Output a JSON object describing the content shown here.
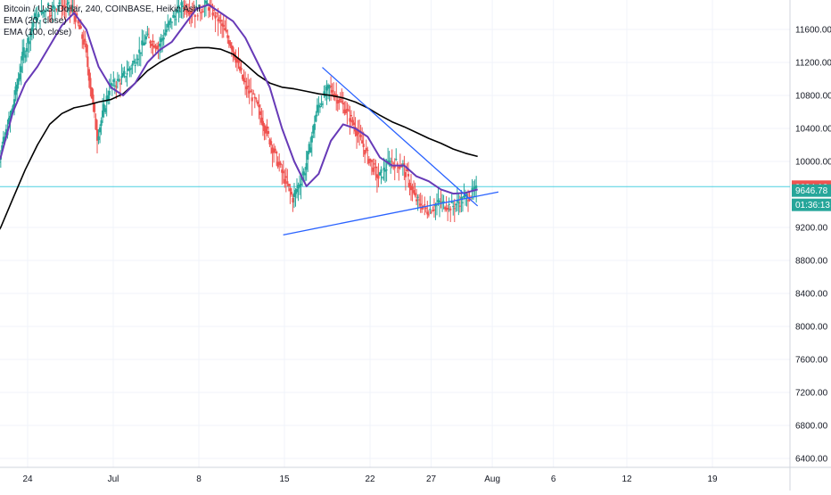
{
  "legend": {
    "symbol_line": "Bitcoin / U.S. Dollar, 240, COINBASE, Heikin Ashi",
    "ema20": "EMA (20, close)",
    "ema100": "EMA (100, close)"
  },
  "colors": {
    "up": "#26a69a",
    "down": "#ef5350",
    "ema20": "#673ab7",
    "ema100": "#000000",
    "trendline": "#2962ff",
    "hline": "#4dd0e1",
    "last_price_bg": "#ef5350",
    "current_bg": "#26a69a",
    "countdown_bg": "#26a69a"
  },
  "chart_data": {
    "type": "candlestick",
    "x_ticks": [
      "24",
      "Jul",
      "8",
      "15",
      "22",
      "27",
      "Aug",
      "6",
      "12",
      "19"
    ],
    "y_ticks": [
      "11600.00",
      "11200.00",
      "10800.00",
      "10400.00",
      "10000.00",
      "9200.00",
      "8800.00",
      "8400.00",
      "8000.00",
      "7600.00",
      "7200.00",
      "6800.00",
      "6400.00"
    ],
    "y_range": [
      6300,
      12000
    ],
    "x_range_days": [
      "Jun 21",
      "Aug 22"
    ],
    "price_labels": {
      "last": "9694.16",
      "current": "9646.78",
      "countdown": "01:36:13"
    },
    "horizontal_level": 9694.16,
    "ema20_path": [
      [
        -1,
        9700
      ],
      [
        0,
        9760
      ],
      [
        1,
        10050
      ],
      [
        2,
        10600
      ],
      [
        3,
        10950
      ],
      [
        4,
        11150
      ],
      [
        5,
        11400
      ],
      [
        6,
        11650
      ],
      [
        7,
        11800
      ],
      [
        8,
        11600
      ],
      [
        9,
        11150
      ],
      [
        10,
        10900
      ],
      [
        11,
        10800
      ],
      [
        12,
        10950
      ],
      [
        13,
        11200
      ],
      [
        14,
        11350
      ],
      [
        15,
        11450
      ],
      [
        16,
        11650
      ],
      [
        17,
        11850
      ],
      [
        18,
        11900
      ],
      [
        19,
        11800
      ],
      [
        20,
        11700
      ],
      [
        21,
        11500
      ],
      [
        22,
        11200
      ],
      [
        23,
        10900
      ],
      [
        24,
        10400
      ],
      [
        25,
        10000
      ],
      [
        26,
        9700
      ],
      [
        27,
        9850
      ],
      [
        28,
        10250
      ],
      [
        29,
        10450
      ],
      [
        30,
        10400
      ],
      [
        31,
        10300
      ],
      [
        32,
        10050
      ],
      [
        33,
        9950
      ],
      [
        34,
        9950
      ],
      [
        35,
        9820
      ],
      [
        36,
        9760
      ],
      [
        37,
        9660
      ],
      [
        38,
        9610
      ],
      [
        39,
        9620
      ],
      [
        40,
        9660
      ]
    ],
    "ema100_path": [
      [
        -1,
        8800
      ],
      [
        0,
        8950
      ],
      [
        1,
        9200
      ],
      [
        2,
        9550
      ],
      [
        3,
        9900
      ],
      [
        4,
        10200
      ],
      [
        5,
        10450
      ],
      [
        6,
        10580
      ],
      [
        7,
        10650
      ],
      [
        8,
        10680
      ],
      [
        9,
        10720
      ],
      [
        10,
        10750
      ],
      [
        11,
        10820
      ],
      [
        12,
        10950
      ],
      [
        13,
        11100
      ],
      [
        14,
        11200
      ],
      [
        15,
        11280
      ],
      [
        16,
        11350
      ],
      [
        17,
        11380
      ],
      [
        18,
        11380
      ],
      [
        19,
        11360
      ],
      [
        20,
        11300
      ],
      [
        21,
        11180
      ],
      [
        22,
        11050
      ],
      [
        23,
        10950
      ],
      [
        24,
        10900
      ],
      [
        25,
        10880
      ],
      [
        26,
        10850
      ],
      [
        27,
        10820
      ],
      [
        28,
        10800
      ],
      [
        29,
        10770
      ],
      [
        30,
        10720
      ],
      [
        31,
        10650
      ],
      [
        32,
        10560
      ],
      [
        33,
        10480
      ],
      [
        34,
        10420
      ],
      [
        35,
        10350
      ],
      [
        36,
        10280
      ],
      [
        37,
        10220
      ],
      [
        38,
        10150
      ],
      [
        39,
        10100
      ],
      [
        40,
        10060
      ]
    ],
    "trendlines": [
      {
        "from": [
          24.1,
          9110
        ],
        "to": [
          41.7,
          9630
        ]
      },
      {
        "from": [
          27.3,
          11140
        ],
        "to": [
          40.0,
          9460
        ]
      }
    ],
    "ohlc_bars": [
      [
        0,
        9750,
        10050
      ],
      [
        1,
        10050,
        10600
      ],
      [
        2,
        10600,
        11350
      ],
      [
        3,
        11300,
        11800
      ],
      [
        4,
        11700,
        11900
      ],
      [
        5,
        11800,
        11950
      ],
      [
        6,
        11900,
        11850
      ],
      [
        7,
        11850,
        11400
      ],
      [
        8,
        11400,
        10300
      ],
      [
        9,
        10300,
        10900
      ],
      [
        10,
        10900,
        11000
      ],
      [
        11,
        11000,
        11200
      ],
      [
        12,
        11200,
        11500
      ],
      [
        13,
        11500,
        11400
      ],
      [
        14,
        11400,
        11700
      ],
      [
        15,
        11700,
        11900
      ],
      [
        16,
        11900,
        11800
      ],
      [
        17,
        11800,
        11900
      ],
      [
        18,
        11900,
        11700
      ],
      [
        19,
        11700,
        11400
      ],
      [
        20,
        11400,
        10950
      ],
      [
        21,
        10950,
        10700
      ],
      [
        22,
        10700,
        10300
      ],
      [
        23,
        10300,
        9900
      ],
      [
        24,
        9900,
        9550
      ],
      [
        25,
        9550,
        9900
      ],
      [
        26,
        9900,
        10650
      ],
      [
        27,
        10650,
        10900
      ],
      [
        28,
        10900,
        10700
      ],
      [
        29,
        10700,
        10450
      ],
      [
        30,
        10450,
        10100
      ],
      [
        31,
        10100,
        9800
      ],
      [
        32,
        9800,
        10000
      ],
      [
        33,
        10000,
        9950
      ],
      [
        34,
        9950,
        9550
      ],
      [
        35,
        9550,
        9400
      ],
      [
        36,
        9400,
        9500
      ],
      [
        37,
        9500,
        9450
      ],
      [
        38,
        9450,
        9550
      ],
      [
        39,
        9550,
        9650
      ],
      [
        40,
        9650,
        9700
      ]
    ]
  }
}
